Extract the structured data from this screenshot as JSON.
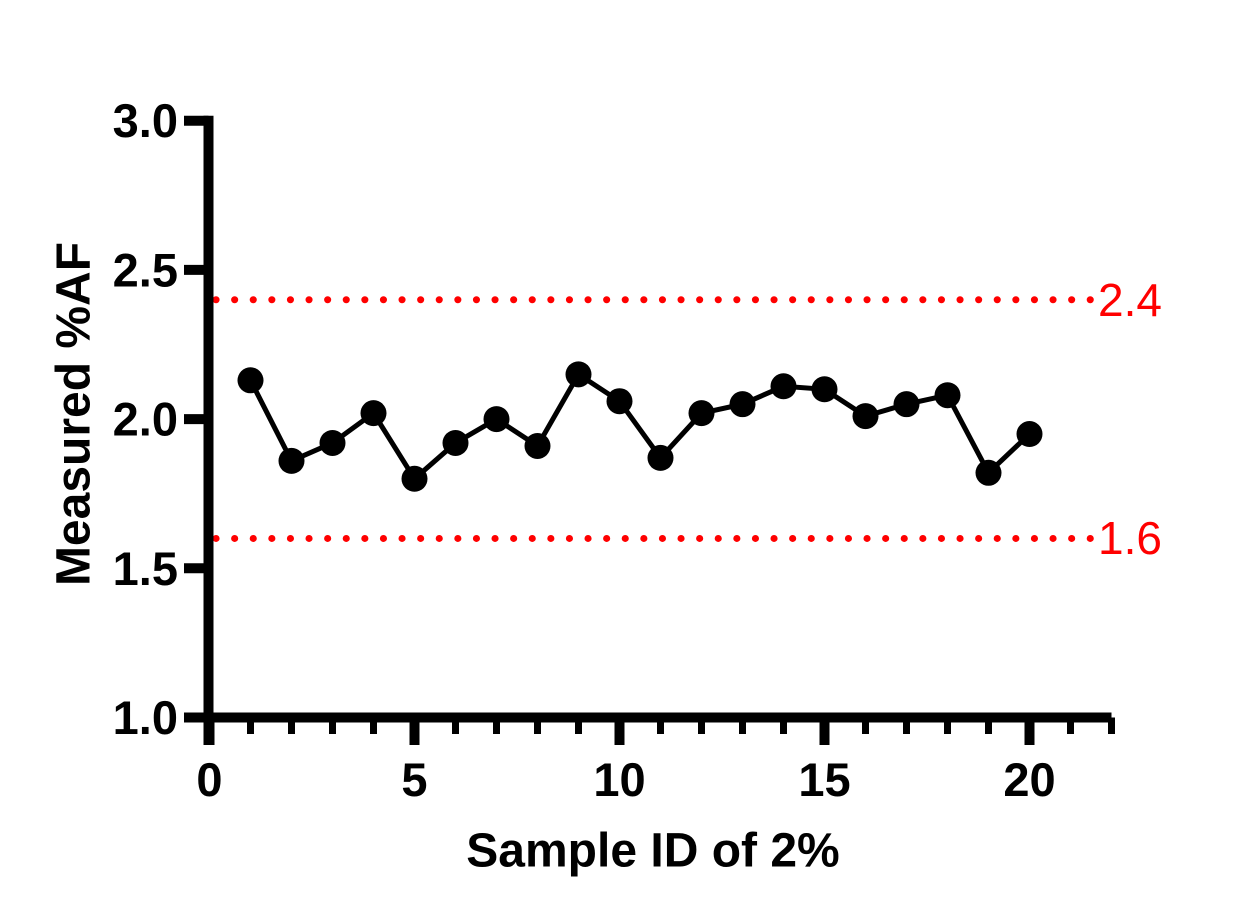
{
  "chart_data": {
    "type": "line",
    "title": "",
    "xlabel": "Sample ID of 2%",
    "ylabel": "Measured %AF",
    "x": [
      1,
      2,
      3,
      4,
      5,
      6,
      7,
      8,
      9,
      10,
      11,
      12,
      13,
      14,
      15,
      16,
      17,
      18,
      19,
      20
    ],
    "series": [
      {
        "name": "Measured %AF",
        "values": [
          2.13,
          1.86,
          1.92,
          2.02,
          1.8,
          1.92,
          2.0,
          1.91,
          2.15,
          2.06,
          1.87,
          2.02,
          2.05,
          2.11,
          2.1,
          2.01,
          2.05,
          2.08,
          1.82,
          1.95
        ]
      }
    ],
    "xlim": [
      0,
      22
    ],
    "ylim": [
      1.0,
      3.0
    ],
    "x_major_ticks": [
      0,
      5,
      10,
      15,
      20
    ],
    "x_major_tick_labels": [
      "0",
      "5",
      "10",
      "15",
      "20"
    ],
    "x_minor_tick_step": 1,
    "y_ticks": [
      1.0,
      1.5,
      2.0,
      2.5,
      3.0
    ],
    "y_tick_labels": [
      "1.0",
      "1.5",
      "2.0",
      "2.5",
      "3.0"
    ],
    "grid": false,
    "legend": false,
    "axis_color": "#000000",
    "marker": {
      "shape": "circle",
      "color": "#000000",
      "radius": 13
    },
    "line": {
      "color": "#000000",
      "width": 5
    },
    "reference_lines": [
      {
        "value": 2.4,
        "label": "2.4",
        "color": "#FF0000",
        "style": "dotted"
      },
      {
        "value": 1.6,
        "label": "1.6",
        "color": "#FF0000",
        "style": "dotted"
      }
    ]
  }
}
